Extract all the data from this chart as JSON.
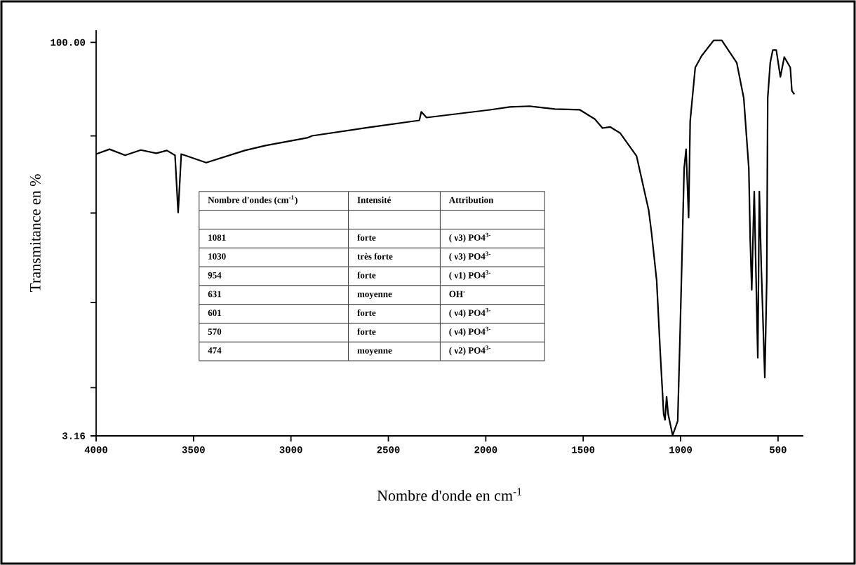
{
  "chart_data": {
    "type": "line",
    "xlabel": "Nombre d'onde en cm$^{-1}$",
    "ylabel": "Transmitance en %",
    "xlim": [
      4000,
      370
    ],
    "ylim": [
      3.16,
      103
    ],
    "xticks": [
      4000,
      3500,
      3000,
      2500,
      2000,
      1500,
      1000,
      500
    ],
    "yticks": [
      {
        "value": 100,
        "label": "100.00"
      },
      {
        "value": 77,
        "label": null
      },
      {
        "value": 58,
        "label": null
      },
      {
        "value": 36,
        "label": null
      },
      {
        "value": 15,
        "label": null
      },
      {
        "value": 3.16,
        "label": "3.16"
      }
    ],
    "color": "#000000",
    "x": [
      4000,
      3931,
      3851,
      3771,
      3691,
      3637,
      3595,
      3579,
      3563,
      3435,
      3237,
      3131,
      2917,
      2891,
      2597,
      2341,
      2331,
      2304,
      1979,
      1877,
      1774,
      1645,
      1517,
      1440,
      1401,
      1362,
      1311,
      1226,
      1164,
      1149,
      1123,
      1105,
      1087,
      1080,
      1072,
      1064,
      1041,
      1015,
      1002,
      990,
      982,
      972,
      959,
      951,
      925,
      892,
      830,
      789,
      712,
      676,
      650,
      643,
      635,
      625,
      622,
      614,
      604,
      596,
      586,
      568,
      558,
      553,
      540,
      527,
      509,
      488,
      468,
      437,
      429,
      416
    ],
    "values": [
      72.5,
      73.7,
      72.2,
      73.5,
      72.7,
      73.4,
      72.2,
      58.1,
      72.5,
      70.4,
      73.4,
      74.6,
      76.5,
      77.0,
      79.1,
      80.8,
      82.9,
      81.5,
      83.4,
      84.1,
      84.3,
      83.6,
      83.4,
      81.1,
      78.9,
      79.2,
      77.7,
      72.0,
      58.7,
      53.0,
      41.4,
      24.1,
      8.5,
      7.1,
      12.8,
      8.5,
      3.3,
      6.8,
      29.8,
      53.0,
      69.0,
      73.7,
      56.9,
      80.6,
      93.8,
      96.7,
      100.5,
      100.5,
      95.0,
      86.3,
      69.0,
      51.7,
      39.1,
      58.7,
      63.3,
      44.8,
      22.4,
      63.3,
      44.8,
      17.5,
      41.4,
      86.3,
      95.0,
      98.1,
      98.1,
      91.5,
      96.4,
      93.8,
      88.1,
      87.2
    ],
    "annotations": [
      "Nombre d'ondes (cm$^{-1}$)",
      "Intensité",
      "Attribution",
      "1081",
      "forte",
      "( ν3) PO4$^{3-}$",
      "1030",
      "très forte",
      "( ν3) PO4$^{3-}$",
      "954",
      "forte",
      "( ν1) PO4$^{3-}$",
      "631",
      "moyenne",
      "OH$^{-}$",
      "601",
      "forte",
      "( ν4) PO4$^{3-}$",
      "570",
      "forte",
      "( ν4) PO4$^{3-}$",
      "474",
      "moyenne",
      "( ν2) PO4$^{3-}$"
    ]
  }
}
